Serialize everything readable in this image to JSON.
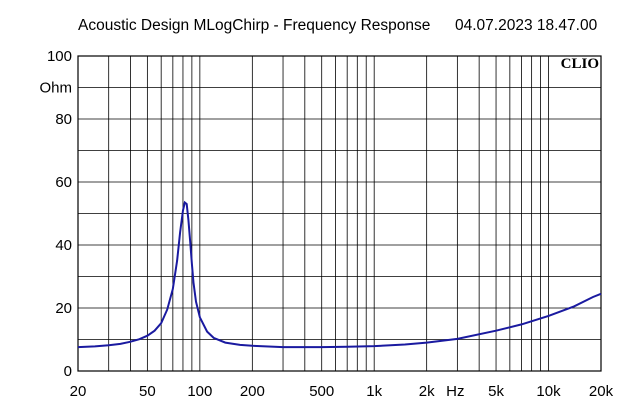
{
  "header": {
    "title": "Acoustic Design MLogChirp - Frequency Response",
    "timestamp": "04.07.2023 18.47.00"
  },
  "chart_data": {
    "type": "line",
    "title": "Acoustic Design MLogChirp - Frequency Response",
    "ylabel": "Ohm",
    "xunit": "Hz",
    "brand": "CLIO",
    "xscale": "log",
    "xlim": [
      20,
      20000
    ],
    "ylim": [
      0,
      100
    ],
    "grid": true,
    "x_ticks": [
      {
        "value": 20,
        "label": "20"
      },
      {
        "value": 50,
        "label": "50"
      },
      {
        "value": 100,
        "label": "100"
      },
      {
        "value": 200,
        "label": "200"
      },
      {
        "value": 500,
        "label": "500"
      },
      {
        "value": 1000,
        "label": "1k"
      },
      {
        "value": 2000,
        "label": "2k"
      },
      {
        "value": 5000,
        "label": "5k"
      },
      {
        "value": 10000,
        "label": "10k"
      },
      {
        "value": 20000,
        "label": "20k"
      }
    ],
    "y_ticks": [
      {
        "value": 0,
        "label": "0"
      },
      {
        "value": 20,
        "label": "20"
      },
      {
        "value": 40,
        "label": "40"
      },
      {
        "value": 60,
        "label": "60"
      },
      {
        "value": 80,
        "label": "80"
      },
      {
        "value": 100,
        "label": "100"
      }
    ],
    "colors": {
      "curve": "#1a1aa0",
      "grid": "#000000"
    },
    "series": [
      {
        "x": [
          20,
          25,
          30,
          35,
          40,
          45,
          50,
          55,
          60,
          65,
          70,
          74,
          77,
          80,
          82,
          84,
          86,
          88,
          90,
          92,
          95,
          100,
          110,
          120,
          140,
          170,
          200,
          300,
          500,
          700,
          1000,
          1500,
          2000,
          3000,
          5000,
          7000,
          10000,
          14000,
          18000,
          20000
        ],
        "values": [
          7.6,
          7.8,
          8.2,
          8.6,
          9.3,
          10.1,
          11.2,
          12.8,
          15.2,
          19.5,
          26,
          35,
          44,
          51,
          53.5,
          53,
          48,
          41,
          34,
          28,
          22,
          17,
          12.5,
          10.5,
          9.0,
          8.3,
          8.0,
          7.6,
          7.6,
          7.7,
          7.9,
          8.4,
          9.0,
          10.2,
          12.8,
          14.8,
          17.5,
          20.5,
          23.5,
          24.5
        ]
      }
    ]
  }
}
